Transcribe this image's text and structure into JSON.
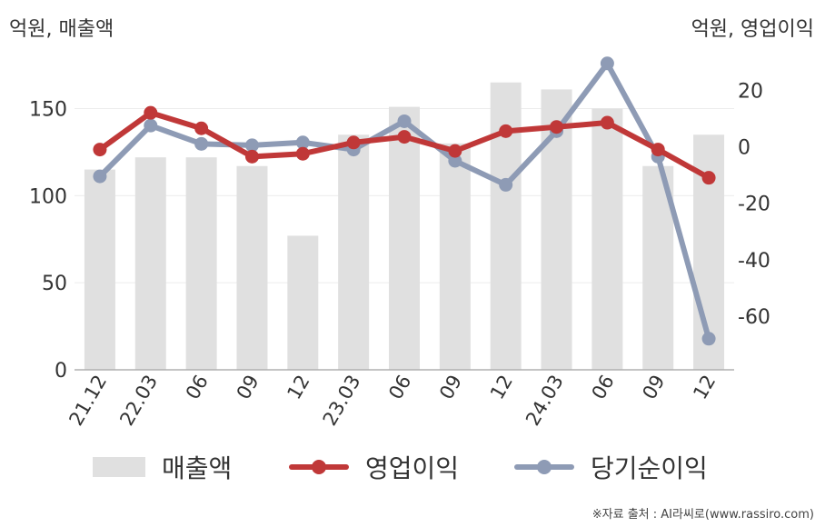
{
  "chart_data": {
    "type": "bar+line",
    "categories": [
      "21.12",
      "22.03",
      "06",
      "09",
      "12",
      "23.03",
      "06",
      "09",
      "12",
      "24.03",
      "06",
      "09",
      "12"
    ],
    "left_axis": {
      "unit_label": "억원, 매출액",
      "ylim": [
        0,
        180
      ],
      "ticks": [
        0,
        50,
        100,
        150
      ]
    },
    "right_axis": {
      "unit_label": "억원, 영업이익",
      "ylim": [
        -79,
        32
      ],
      "ticks": [
        20,
        0,
        -20,
        -40,
        -60
      ]
    },
    "series": [
      {
        "name": "매출액",
        "type": "bar",
        "axis": "left",
        "color": "#e0e0e0",
        "values": [
          115,
          122,
          122,
          117,
          77,
          135,
          151,
          130,
          165,
          161,
          150,
          117,
          135
        ]
      },
      {
        "name": "영업이익",
        "type": "line",
        "axis": "right",
        "color": "#c03838",
        "values": [
          -1,
          12,
          6.5,
          -3.5,
          -2.5,
          1.5,
          3.5,
          -1.5,
          5.5,
          7,
          8.5,
          -1,
          -11
        ]
      },
      {
        "name": "당기순이익",
        "type": "line",
        "axis": "right",
        "color": "#8e9bb5",
        "values": [
          -10.5,
          7.5,
          1,
          0.5,
          1.5,
          -1,
          9,
          -5,
          -13.5,
          5.5,
          29.5,
          -3.5,
          -68
        ]
      }
    ],
    "grid": "horizontal",
    "legend_position": "bottom"
  },
  "source_note": "※자료 출처 : AI라씨로(www.rassiro.com)"
}
